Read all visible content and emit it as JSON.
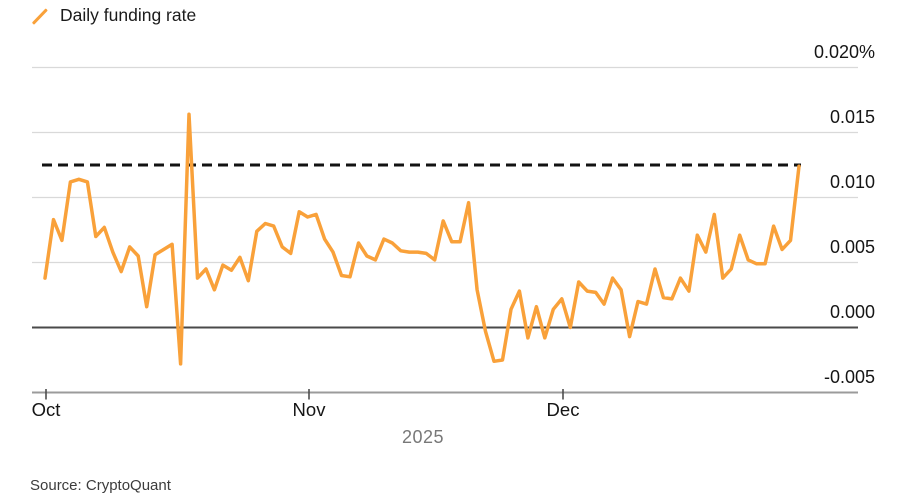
{
  "legend": {
    "series_label": "Daily funding rate"
  },
  "y_axis": {
    "ticks": [
      {
        "label": "0.020%",
        "value": 0.02
      },
      {
        "label": "0.015",
        "value": 0.015
      },
      {
        "label": "0.010",
        "value": 0.01
      },
      {
        "label": "0.005",
        "value": 0.005
      },
      {
        "label": "0.000",
        "value": 0.0
      },
      {
        "label": "-0.005",
        "value": -0.005
      }
    ]
  },
  "x_axis": {
    "ticks": [
      {
        "label": "Oct"
      },
      {
        "label": "Nov"
      },
      {
        "label": "Dec"
      }
    ],
    "year_label": "2025"
  },
  "source_label": "Source: CryptoQuant",
  "colors": {
    "line": "#F9A13A",
    "reference_dash": "#121212",
    "grid": "#d9d9d9",
    "zero_line": "#4a4a4a",
    "axis_line": "#9b9b9b",
    "tick_mark": "#4d4d4d",
    "year_text": "#787878"
  },
  "chart_data": {
    "type": "line",
    "title": "Daily funding rate",
    "series_name": "Daily funding rate",
    "x_start_date": "2025-10-01",
    "x_end_date": "2025-12-29",
    "x_interval": "daily",
    "x_tick_labels": [
      "Oct",
      "Nov",
      "Dec"
    ],
    "year": "2025",
    "ylabel": "Daily funding rate (%)",
    "ylim": [
      -0.005,
      0.02
    ],
    "y_tick_values": [
      0.02,
      0.015,
      0.01,
      0.005,
      0.0,
      -0.005
    ],
    "grid": "horizontal",
    "legend_position": "top-left",
    "reference_line": 0.0125,
    "reference_line_style": "dashed-black",
    "values": [
      0.0038,
      0.0083,
      0.0067,
      0.0112,
      0.0114,
      0.0112,
      0.007,
      0.0077,
      0.0058,
      0.0043,
      0.0062,
      0.0055,
      0.0016,
      0.0056,
      0.006,
      0.0064,
      -0.0028,
      0.0164,
      0.0038,
      0.0045,
      0.0029,
      0.0048,
      0.0044,
      0.0054,
      0.0036,
      0.0074,
      0.008,
      0.0078,
      0.0062,
      0.0057,
      0.0089,
      0.0085,
      0.0087,
      0.0068,
      0.0058,
      0.004,
      0.0039,
      0.0065,
      0.0055,
      0.0052,
      0.0068,
      0.0065,
      0.0059,
      0.0058,
      0.0058,
      0.0057,
      0.0052,
      0.0082,
      0.0066,
      0.0066,
      0.0096,
      0.0029,
      -0.0003,
      -0.0026,
      -0.0025,
      0.0014,
      0.0028,
      -0.0008,
      0.0016,
      -0.0008,
      0.0014,
      0.0022,
      0.0,
      0.0035,
      0.0028,
      0.0027,
      0.0018,
      0.0038,
      0.0029,
      -0.0007,
      0.002,
      0.0018,
      0.0045,
      0.0023,
      0.0022,
      0.0038,
      0.0028,
      0.0071,
      0.0058,
      0.0087,
      0.0038,
      0.0045,
      0.0071,
      0.0052,
      0.0049,
      0.0049,
      0.0078,
      0.006,
      0.0067,
      0.0124
    ]
  }
}
